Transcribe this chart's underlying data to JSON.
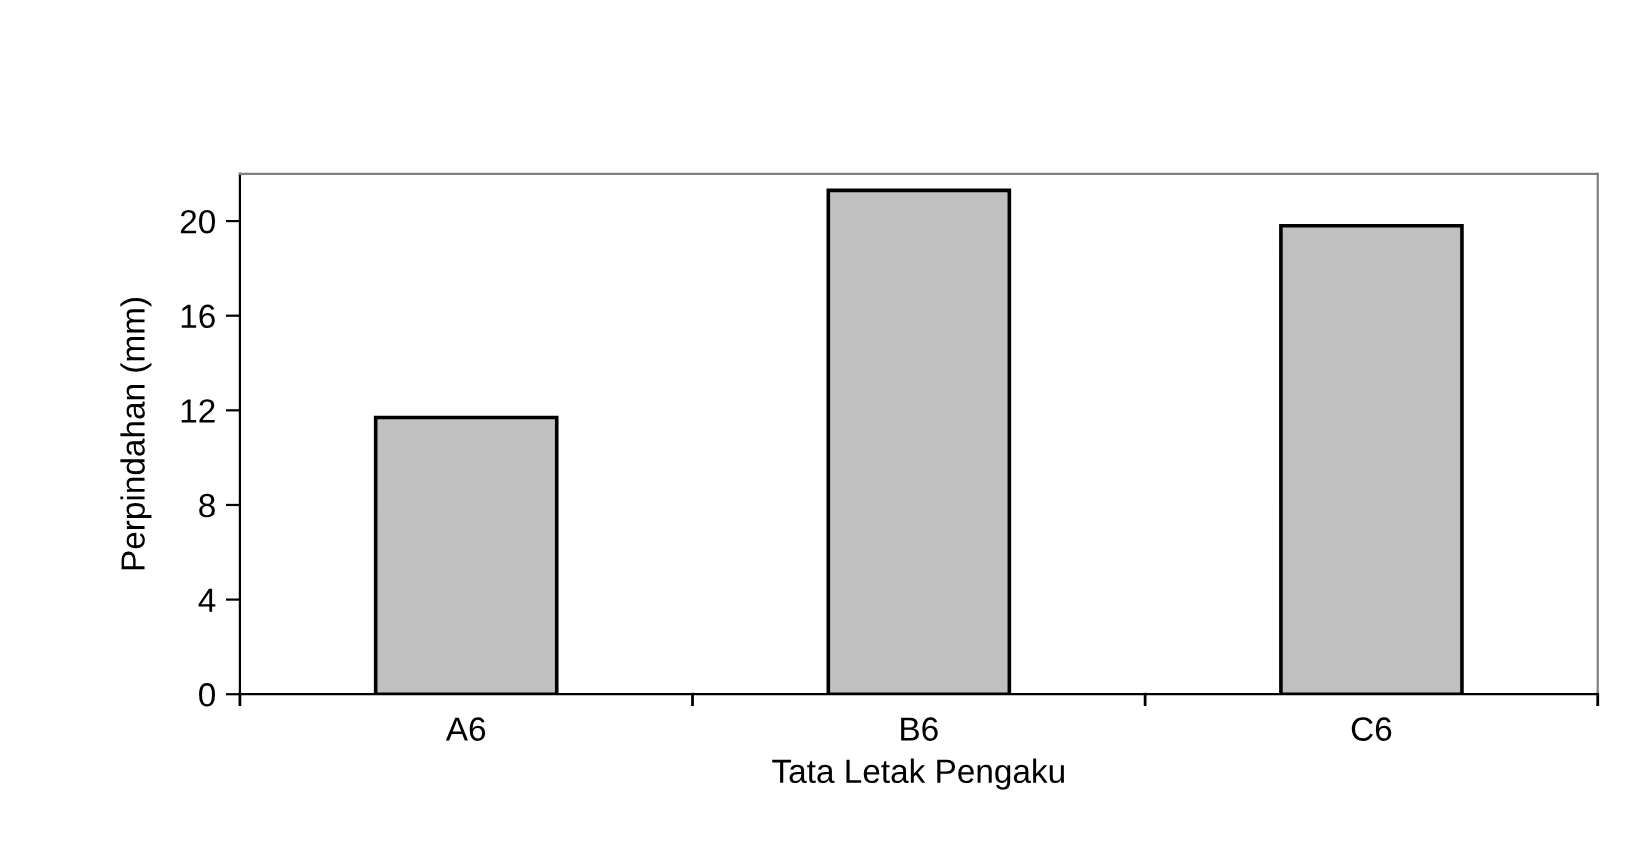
{
  "chart_data": {
    "type": "bar",
    "xlabel": "Tata Letak Pengaku",
    "ylabel": "Perpindahan (mm)",
    "categories": [
      "A6",
      "B6",
      "C6"
    ],
    "values": [
      11.7,
      21.3,
      19.8
    ],
    "color": "#c0c0c0",
    "ylim": [
      0,
      22
    ],
    "yticks": [
      0,
      4,
      8,
      12,
      16,
      20
    ],
    "grid": false
  }
}
